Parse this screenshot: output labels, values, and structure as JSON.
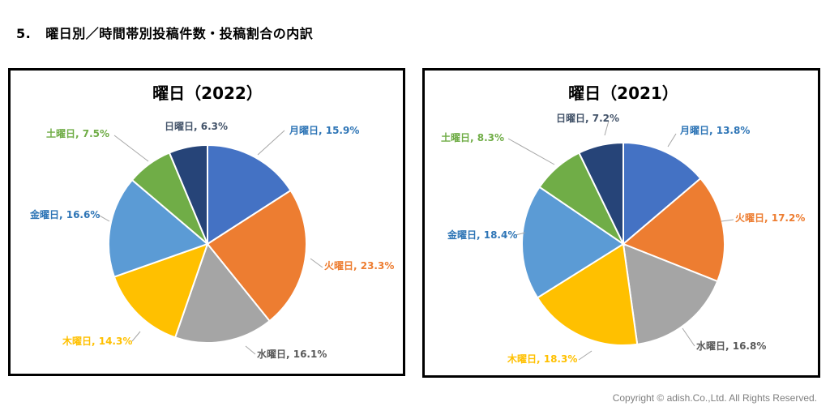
{
  "heading": {
    "number": "5.",
    "text": "曜日別／時間帯別投稿件数・投稿割合の内訳"
  },
  "footer": {
    "copyright": "Copyright © adish.Co.,Ltd.  All Rights Reserved."
  },
  "colors": {
    "月曜日": "#4472C4",
    "火曜日": "#ED7D31",
    "水曜日": "#A5A5A5",
    "木曜日": "#FFC000",
    "金曜日": "#5B9BD5",
    "土曜日": "#70AD47",
    "日曜日": "#264478"
  },
  "label_colors": {
    "月曜日": "#2E75B6",
    "火曜日": "#ED7D31",
    "水曜日": "#595959",
    "木曜日": "#FFC000",
    "金曜日": "#2E75B6",
    "土曜日": "#70AD47",
    "日曜日": "#44546A"
  },
  "chart_data": [
    {
      "type": "pie",
      "title": "曜日（2022）",
      "categories": [
        "月曜日",
        "火曜日",
        "水曜日",
        "木曜日",
        "金曜日",
        "土曜日",
        "日曜日"
      ],
      "values": [
        15.9,
        23.3,
        16.1,
        14.3,
        16.6,
        7.5,
        6.3
      ],
      "labels": [
        "月曜日, 15.9%",
        "火曜日, 23.3%",
        "水曜日, 16.1%",
        "木曜日, 14.3%",
        "金曜日, 16.6%",
        "土曜日, 7.5%",
        "日曜日, 6.3%"
      ]
    },
    {
      "type": "pie",
      "title": "曜日（2021）",
      "categories": [
        "月曜日",
        "火曜日",
        "水曜日",
        "木曜日",
        "金曜日",
        "土曜日",
        "日曜日"
      ],
      "values": [
        13.8,
        17.2,
        16.8,
        18.3,
        18.4,
        8.3,
        7.2
      ],
      "labels": [
        "月曜日, 13.8%",
        "火曜日, 17.2%",
        "水曜日, 16.8%",
        "木曜日, 18.3%",
        "金曜日, 18.4%",
        "土曜日, 8.3%",
        "日曜日, 7.2%"
      ]
    }
  ]
}
